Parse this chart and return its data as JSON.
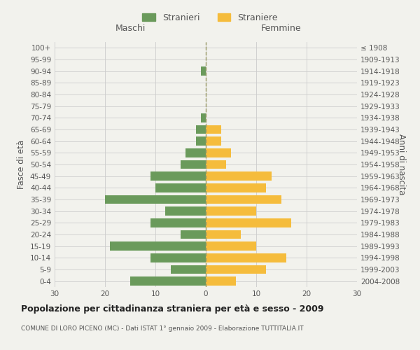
{
  "age_groups": [
    "0-4",
    "5-9",
    "10-14",
    "15-19",
    "20-24",
    "25-29",
    "30-34",
    "35-39",
    "40-44",
    "45-49",
    "50-54",
    "55-59",
    "60-64",
    "65-69",
    "70-74",
    "75-79",
    "80-84",
    "85-89",
    "90-94",
    "95-99",
    "100+"
  ],
  "birth_years": [
    "2004-2008",
    "1999-2003",
    "1994-1998",
    "1989-1993",
    "1984-1988",
    "1979-1983",
    "1974-1978",
    "1969-1973",
    "1964-1968",
    "1959-1963",
    "1954-1958",
    "1949-1953",
    "1944-1948",
    "1939-1943",
    "1934-1938",
    "1929-1933",
    "1924-1928",
    "1919-1923",
    "1914-1918",
    "1909-1913",
    "≤ 1908"
  ],
  "maschi": [
    15,
    7,
    11,
    19,
    5,
    11,
    8,
    20,
    10,
    11,
    5,
    4,
    2,
    2,
    1,
    0,
    0,
    0,
    1,
    0,
    0
  ],
  "femmine": [
    6,
    12,
    16,
    10,
    7,
    17,
    10,
    15,
    12,
    13,
    4,
    5,
    3,
    3,
    0,
    0,
    0,
    0,
    0,
    0,
    0
  ],
  "maschi_color": "#6a9a5b",
  "femmine_color": "#f5bc3c",
  "background_color": "#f2f2ed",
  "grid_color": "#cccccc",
  "title": "Popolazione per cittadinanza straniera per età e sesso - 2009",
  "subtitle": "COMUNE DI LORO PICENO (MC) - Dati ISTAT 1° gennaio 2009 - Elaborazione TUTTITALIA.IT",
  "xlabel_left": "Maschi",
  "xlabel_right": "Femmine",
  "ylabel_left": "Fasce di età",
  "ylabel_right": "Anni di nascita",
  "legend_maschi": "Stranieri",
  "legend_femmine": "Straniere",
  "xlim": 30,
  "dashed_line_color": "#999966"
}
